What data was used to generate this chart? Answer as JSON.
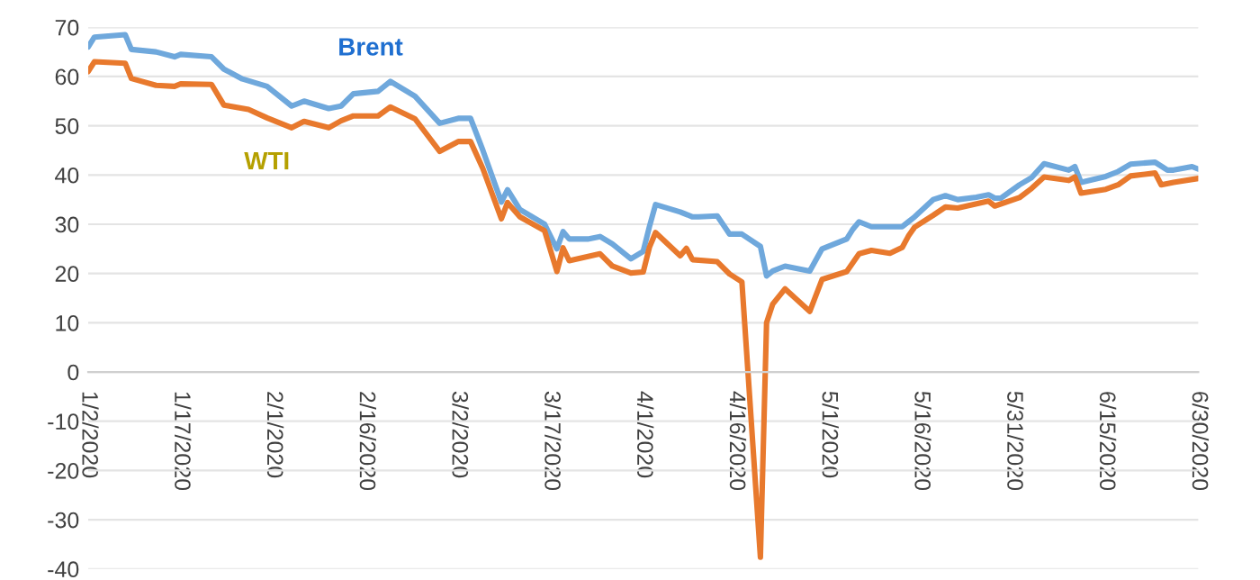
{
  "chart_data": {
    "type": "line",
    "series": [
      {
        "name": "Brent",
        "color": "#6fa8dc",
        "x": [
          "2020-01-02",
          "2020-01-03",
          "2020-01-08",
          "2020-01-09",
          "2020-01-13",
          "2020-01-16",
          "2020-01-17",
          "2020-01-22",
          "2020-01-24",
          "2020-01-27",
          "2020-01-31",
          "2020-02-04",
          "2020-02-06",
          "2020-02-10",
          "2020-02-12",
          "2020-02-14",
          "2020-02-18",
          "2020-02-20",
          "2020-02-24",
          "2020-02-28",
          "2020-03-02",
          "2020-03-04",
          "2020-03-06",
          "2020-03-09",
          "2020-03-10",
          "2020-03-12",
          "2020-03-16",
          "2020-03-18",
          "2020-03-19",
          "2020-03-20",
          "2020-03-23",
          "2020-03-25",
          "2020-03-27",
          "2020-03-30",
          "2020-04-01",
          "2020-04-02",
          "2020-04-03",
          "2020-04-07",
          "2020-04-09",
          "2020-04-10",
          "2020-04-13",
          "2020-04-15",
          "2020-04-17",
          "2020-04-20",
          "2020-04-21",
          "2020-04-22",
          "2020-04-24",
          "2020-04-28",
          "2020-04-30",
          "2020-05-04",
          "2020-05-05",
          "2020-05-06",
          "2020-05-08",
          "2020-05-11",
          "2020-05-13",
          "2020-05-14",
          "2020-05-15",
          "2020-05-18",
          "2020-05-20",
          "2020-05-22",
          "2020-05-25",
          "2020-05-27",
          "2020-05-28",
          "2020-05-29",
          "2020-06-01",
          "2020-06-03",
          "2020-06-05",
          "2020-06-09",
          "2020-06-10",
          "2020-06-11",
          "2020-06-15",
          "2020-06-17",
          "2020-06-19",
          "2020-06-23",
          "2020-06-25",
          "2020-06-26",
          "2020-06-29",
          "2020-06-30"
        ],
        "values": [
          66,
          68,
          68.5,
          65.5,
          65,
          64,
          64.5,
          64,
          61.5,
          59.5,
          58,
          54,
          55,
          53.5,
          54,
          56.5,
          57,
          59,
          56,
          50.5,
          51.5,
          51.5,
          45,
          34.5,
          37,
          33,
          30,
          25,
          28.5,
          27,
          27,
          27.5,
          26,
          23,
          24.5,
          29.5,
          34,
          32.5,
          31.5,
          31.5,
          31.7,
          28,
          28,
          25.5,
          19.5,
          20.5,
          21.5,
          20.5,
          25,
          27,
          29,
          30.5,
          29.5,
          29.5,
          29.5,
          30.5,
          31.5,
          35,
          35.8,
          35,
          35.5,
          36,
          35.3,
          35.3,
          38,
          39.5,
          42.3,
          41,
          41.7,
          38.5,
          39.7,
          40.7,
          42.2,
          42.6,
          41,
          41,
          41.7,
          41.2
        ]
      },
      {
        "name": "WTI",
        "color": "#e8792d",
        "x": [
          "2020-01-02",
          "2020-01-03",
          "2020-01-08",
          "2020-01-09",
          "2020-01-13",
          "2020-01-16",
          "2020-01-17",
          "2020-01-22",
          "2020-01-24",
          "2020-01-28",
          "2020-01-31",
          "2020-02-04",
          "2020-02-06",
          "2020-02-10",
          "2020-02-12",
          "2020-02-14",
          "2020-02-18",
          "2020-02-20",
          "2020-02-24",
          "2020-02-28",
          "2020-03-02",
          "2020-03-04",
          "2020-03-06",
          "2020-03-09",
          "2020-03-10",
          "2020-03-12",
          "2020-03-16",
          "2020-03-18",
          "2020-03-19",
          "2020-03-20",
          "2020-03-25",
          "2020-03-27",
          "2020-03-30",
          "2020-04-01",
          "2020-04-02",
          "2020-04-03",
          "2020-04-07",
          "2020-04-08",
          "2020-04-09",
          "2020-04-13",
          "2020-04-15",
          "2020-04-17",
          "2020-04-20",
          "2020-04-21",
          "2020-04-22",
          "2020-04-24",
          "2020-04-28",
          "2020-04-30",
          "2020-05-04",
          "2020-05-06",
          "2020-05-08",
          "2020-05-11",
          "2020-05-13",
          "2020-05-14",
          "2020-05-15",
          "2020-05-18",
          "2020-05-20",
          "2020-05-22",
          "2020-05-27",
          "2020-05-28",
          "2020-06-01",
          "2020-06-03",
          "2020-06-05",
          "2020-06-09",
          "2020-06-10",
          "2020-06-11",
          "2020-06-15",
          "2020-06-17",
          "2020-06-19",
          "2020-06-23",
          "2020-06-24",
          "2020-06-26",
          "2020-06-30"
        ],
        "values": [
          61,
          63,
          62.7,
          59.6,
          58.2,
          58,
          58.5,
          58.4,
          54.2,
          53.3,
          51.6,
          49.6,
          50.9,
          49.6,
          51,
          52,
          52,
          53.8,
          51.4,
          44.8,
          46.8,
          46.8,
          41.3,
          31.1,
          34.4,
          31.5,
          28.7,
          20.4,
          25.2,
          22.6,
          24,
          21.5,
          20.1,
          20.3,
          25.3,
          28.3,
          23.6,
          25.1,
          22.8,
          22.4,
          19.9,
          18.3,
          -37.6,
          10,
          13.8,
          16.9,
          12.3,
          18.8,
          20.4,
          24,
          24.7,
          24.1,
          25.3,
          27.6,
          29.4,
          31.8,
          33.5,
          33.3,
          34.7,
          33.7,
          35.4,
          37.3,
          39.6,
          38.9,
          39.6,
          36.3,
          37.1,
          38,
          39.8,
          40.4,
          38,
          38.5,
          39.3
        ]
      }
    ],
    "xlim": [
      "2020-01-02",
      "2020-06-30"
    ],
    "xticks": [
      {
        "value": "2020-01-02",
        "label": "1/2/2020"
      },
      {
        "value": "2020-01-17",
        "label": "1/17/2020"
      },
      {
        "value": "2020-02-01",
        "label": "2/1/2020"
      },
      {
        "value": "2020-02-16",
        "label": "2/16/2020"
      },
      {
        "value": "2020-03-02",
        "label": "3/2/2020"
      },
      {
        "value": "2020-03-17",
        "label": "3/17/2020"
      },
      {
        "value": "2020-04-01",
        "label": "4/1/2020"
      },
      {
        "value": "2020-04-16",
        "label": "4/16/2020"
      },
      {
        "value": "2020-05-01",
        "label": "5/1/2020"
      },
      {
        "value": "2020-05-16",
        "label": "5/16/2020"
      },
      {
        "value": "2020-05-31",
        "label": "5/31/2020"
      },
      {
        "value": "2020-06-15",
        "label": "6/15/2020"
      },
      {
        "value": "2020-06-30",
        "label": "6/30/2020"
      }
    ],
    "ylim": [
      -40,
      70
    ],
    "yticks": [
      -40,
      -30,
      -20,
      -10,
      0,
      10,
      20,
      30,
      40,
      50,
      60,
      70
    ],
    "grid": "y",
    "legend": false,
    "marker": "none",
    "line_style": "solid"
  }
}
